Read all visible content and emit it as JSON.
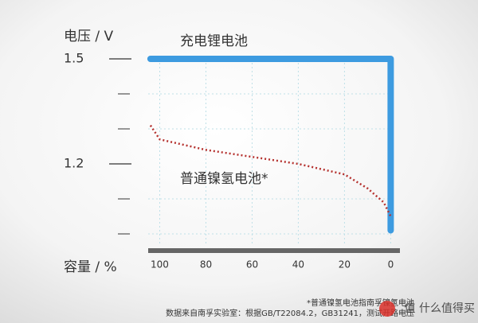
{
  "chart_data": {
    "type": "line",
    "y_axis_label": "电压 / V",
    "x_axis_label": "容量 / %",
    "series": [
      {
        "name": "充电锂电池",
        "color": "#3d9be0",
        "style": "solid",
        "x": [
          104,
          0,
          0
        ],
        "values": [
          1.5,
          1.5,
          1.01
        ]
      },
      {
        "name": "普通镍氢电池*",
        "color": "#b5322f",
        "style": "dotted",
        "x": [
          104,
          100,
          80,
          60,
          40,
          20,
          10,
          3,
          0
        ],
        "values": [
          1.31,
          1.27,
          1.24,
          1.22,
          1.2,
          1.17,
          1.13,
          1.09,
          1.05
        ]
      }
    ],
    "xlim": [
      105,
      -4
    ],
    "xticks": [
      100,
      80,
      60,
      40,
      20,
      0
    ],
    "ylim": [
      0.95,
      1.55
    ],
    "yticks": [
      1.5,
      1.2
    ],
    "yminorticks": [
      1.4,
      1.3,
      1.1,
      1.0
    ],
    "grid": true,
    "footnotes": [
      "*普通镍氢电池指南孚镍氢电池",
      "数据来自南孚实验室：根据GB/T22084.2，GB31241，测试开路电压"
    ],
    "watermark": "值 什么值得买"
  }
}
